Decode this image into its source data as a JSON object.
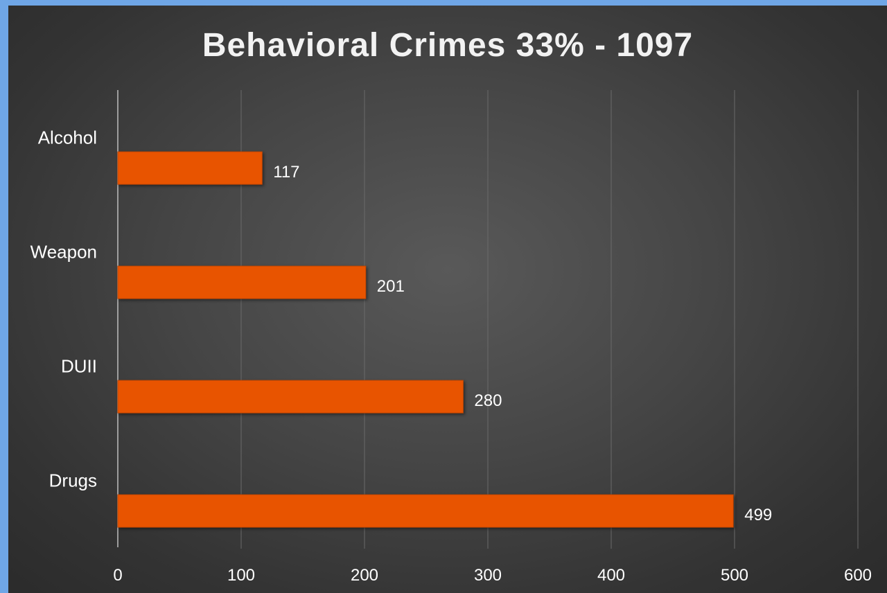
{
  "chart_data": {
    "type": "bar",
    "orientation": "horizontal",
    "title": "Behavioral Crimes 33% - 1097",
    "categories": [
      "Alcohol",
      "Weapon",
      "DUII",
      "Drugs"
    ],
    "values": [
      117,
      201,
      280,
      499
    ],
    "value_labels": [
      "117",
      "201",
      "280",
      "499"
    ],
    "xlim": [
      0,
      600
    ],
    "xticks": [
      0,
      100,
      200,
      300,
      400,
      500,
      600
    ],
    "xtick_labels": [
      "0",
      "100",
      "200",
      "300",
      "400",
      "500",
      "600"
    ],
    "xlabel": "",
    "ylabel": "",
    "grid": true,
    "legend": "none",
    "colors": {
      "bar": "#e85400",
      "background": "#444444",
      "frame": "#6fa6e6",
      "text": "#ffffff"
    }
  }
}
